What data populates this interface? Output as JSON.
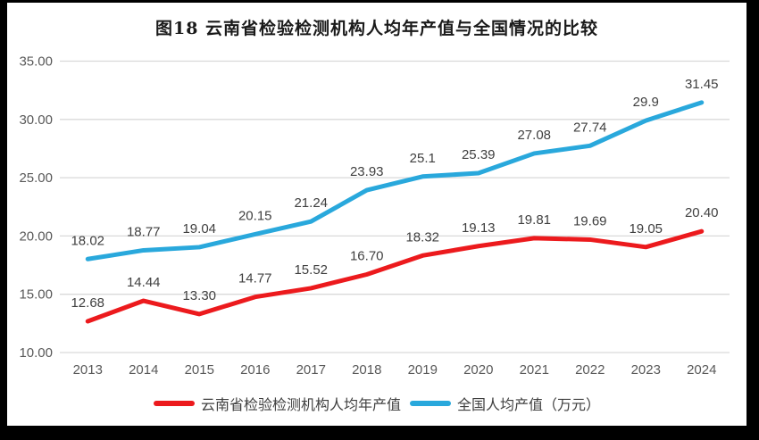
{
  "frame": {
    "border_color": "#000000",
    "card_background": "#ffffff"
  },
  "title": "图18  云南省检验检测机构人均年产值与全国情况的比较",
  "chart_data": {
    "type": "line",
    "title": "图18  云南省检验检测机构人均年产值与全国情况的比较",
    "categories": [
      "2013",
      "2014",
      "2015",
      "2016",
      "2017",
      "2018",
      "2019",
      "2020",
      "2021",
      "2022",
      "2023",
      "2024"
    ],
    "series": [
      {
        "name": "云南省检验检测机构人均年产值",
        "color": "#ec1a1d",
        "values": [
          12.68,
          14.44,
          13.3,
          14.77,
          15.52,
          16.7,
          18.32,
          19.13,
          19.81,
          19.69,
          19.05,
          20.4
        ],
        "labels": [
          "12.68",
          "14.44",
          "13.30",
          "14.77",
          "15.52",
          "16.70",
          "18.32",
          "19.13",
          "19.81",
          "19.69",
          "19.05",
          "20.40"
        ]
      },
      {
        "name": "全国人均产值（万元）",
        "color": "#29a8dc",
        "values": [
          18.02,
          18.77,
          19.04,
          20.15,
          21.24,
          23.93,
          25.1,
          25.39,
          27.08,
          27.74,
          29.9,
          31.45
        ],
        "labels": [
          "18.02",
          "18.77",
          "19.04",
          "20.15",
          "21.24",
          "23.93",
          "25.1",
          "25.39",
          "27.08",
          "27.74",
          "29.9",
          "31.45"
        ]
      }
    ],
    "xlabel": "",
    "ylabel": "",
    "ylim": [
      10,
      35
    ],
    "yticks": [
      "10.00",
      "15.00",
      "20.00",
      "25.00",
      "30.00",
      "35.00"
    ],
    "grid": true,
    "legend_position": "bottom",
    "style": {
      "grid_color": "#d9d9d9",
      "tick_color": "#595959",
      "data_label_color": "#3f3f3f",
      "line_width": 5
    }
  },
  "legend": {
    "items": [
      {
        "label": "云南省检验检测机构人均年产值",
        "color": "#ec1a1d"
      },
      {
        "label": "全国人均产值（万元）",
        "color": "#29a8dc"
      }
    ]
  }
}
